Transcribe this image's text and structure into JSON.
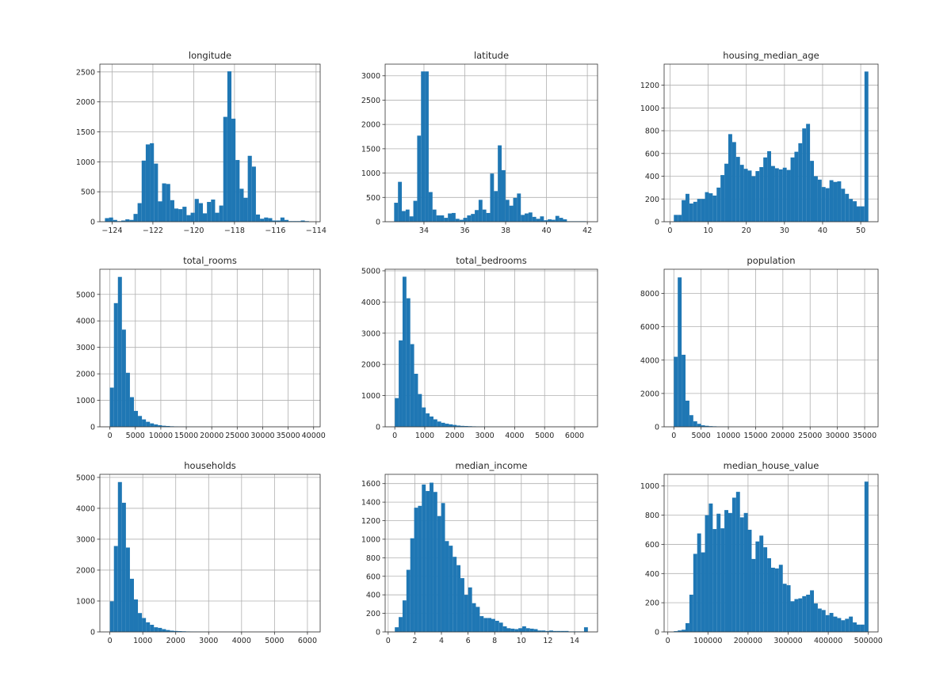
{
  "figure": {
    "bar_color": "#1f77b4",
    "grid_color": "#b0b0b0"
  },
  "chart_data": [
    {
      "type": "bar",
      "title": "longitude",
      "xlabel": "",
      "ylabel": "",
      "xlim": [
        -124.6,
        -113.8
      ],
      "ylim": [
        0,
        2630
      ],
      "grid": true,
      "xticks": [
        -124,
        -122,
        -120,
        -118,
        -116,
        -114
      ],
      "xtick_labels": [
        "−124",
        "−122",
        "−120",
        "−118",
        "−116",
        "−114"
      ],
      "yticks": [
        0,
        500,
        1000,
        1500,
        2000,
        2500
      ],
      "bin_start": -124.35,
      "bin_width": 0.2,
      "values": [
        60,
        70,
        30,
        10,
        20,
        40,
        30,
        130,
        310,
        1020,
        1290,
        1310,
        970,
        340,
        640,
        630,
        360,
        220,
        210,
        250,
        110,
        150,
        380,
        310,
        140,
        330,
        370,
        150,
        270,
        1750,
        2510,
        1720,
        1030,
        550,
        400,
        1100,
        920,
        120,
        50,
        70,
        60,
        20,
        20,
        70,
        30,
        10,
        10,
        10,
        20,
        10
      ]
    },
    {
      "type": "bar",
      "title": "latitude",
      "xlabel": "",
      "ylabel": "",
      "xlim": [
        32.1,
        42.5
      ],
      "ylim": [
        0,
        3240
      ],
      "grid": true,
      "xticks": [
        34,
        36,
        38,
        40,
        42
      ],
      "xtick_labels": [
        "34",
        "36",
        "38",
        "40",
        "42"
      ],
      "yticks": [
        0,
        500,
        1000,
        1500,
        2000,
        2500,
        3000
      ],
      "bin_start": 32.54,
      "bin_width": 0.188,
      "values": [
        390,
        820,
        220,
        250,
        110,
        430,
        1770,
        3090,
        3090,
        610,
        250,
        130,
        130,
        80,
        170,
        180,
        60,
        40,
        80,
        130,
        160,
        240,
        450,
        250,
        180,
        990,
        630,
        1570,
        1060,
        450,
        330,
        490,
        580,
        140,
        170,
        190,
        100,
        60,
        110,
        30,
        50,
        40,
        120,
        80,
        50,
        10,
        10,
        10,
        10,
        10
      ]
    },
    {
      "type": "bar",
      "title": "housing_median_age",
      "xlabel": "",
      "ylabel": "",
      "xlim": [
        -1.55,
        54.55
      ],
      "ylim": [
        0,
        1385
      ],
      "grid": true,
      "xticks": [
        0,
        10,
        20,
        30,
        40,
        50
      ],
      "xtick_labels": [
        "0",
        "10",
        "20",
        "30",
        "40",
        "50"
      ],
      "yticks": [
        0,
        200,
        400,
        600,
        800,
        1000,
        1200
      ],
      "bin_start": 1,
      "bin_width": 1.02,
      "values": [
        60,
        60,
        190,
        245,
        160,
        175,
        200,
        200,
        260,
        250,
        230,
        300,
        410,
        510,
        770,
        700,
        570,
        500,
        465,
        450,
        400,
        445,
        480,
        565,
        620,
        490,
        470,
        460,
        475,
        455,
        565,
        615,
        690,
        820,
        860,
        535,
        400,
        370,
        305,
        295,
        365,
        350,
        355,
        290,
        245,
        200,
        180,
        135,
        135,
        1320
      ]
    },
    {
      "type": "bar",
      "title": "total_rooms",
      "xlabel": "",
      "ylabel": "",
      "xlim": [
        -1967,
        41287
      ],
      "ylim": [
        0,
        5950
      ],
      "grid": true,
      "xticks": [
        0,
        5000,
        10000,
        15000,
        20000,
        25000,
        30000,
        35000,
        40000
      ],
      "xtick_labels": [
        "0",
        "5000",
        "10000",
        "15000",
        "20000",
        "25000",
        "30000",
        "35000",
        "40000"
      ],
      "yticks": [
        0,
        1000,
        2000,
        3000,
        4000,
        5000
      ],
      "bin_start": 2,
      "bin_width": 786.4,
      "values": [
        1480,
        4670,
        5660,
        3670,
        2040,
        1120,
        600,
        410,
        280,
        190,
        130,
        90,
        60,
        40,
        30,
        20,
        15,
        10,
        10,
        8,
        7,
        6,
        5,
        5,
        4,
        4,
        3,
        3,
        2,
        2,
        2,
        2,
        2,
        2,
        1,
        1,
        1,
        1,
        1,
        1,
        1,
        1,
        1,
        1,
        1,
        1,
        1,
        1,
        1,
        2
      ]
    },
    {
      "type": "bar",
      "title": "total_bedrooms",
      "xlabel": "",
      "ylabel": "",
      "xlim": [
        -322,
        6767
      ],
      "ylim": [
        0,
        5050
      ],
      "grid": true,
      "xticks": [
        0,
        1000,
        2000,
        3000,
        4000,
        5000,
        6000
      ],
      "xtick_labels": [
        "0",
        "1000",
        "2000",
        "3000",
        "4000",
        "5000",
        "6000"
      ],
      "yticks": [
        0,
        1000,
        2000,
        3000,
        4000,
        5000
      ],
      "bin_start": 1,
      "bin_width": 128.9,
      "values": [
        920,
        2770,
        4810,
        4120,
        2650,
        1700,
        1050,
        620,
        430,
        330,
        240,
        170,
        130,
        100,
        80,
        60,
        40,
        30,
        25,
        20,
        15,
        12,
        10,
        8,
        6,
        5,
        4,
        4,
        3,
        3,
        2,
        2,
        2,
        2,
        1,
        1,
        1,
        1,
        1,
        1,
        1,
        1,
        1,
        1,
        1,
        1,
        1,
        1,
        1,
        2
      ]
    },
    {
      "type": "bar",
      "title": "population",
      "xlabel": "",
      "ylabel": "",
      "xlim": [
        -1782,
        37466
      ],
      "ylim": [
        0,
        9450
      ],
      "grid": true,
      "xticks": [
        0,
        5000,
        10000,
        15000,
        20000,
        25000,
        30000,
        35000
      ],
      "xtick_labels": [
        "0",
        "5000",
        "10000",
        "15000",
        "20000",
        "25000",
        "30000",
        "35000"
      ],
      "yticks": [
        0,
        2000,
        4000,
        6000,
        8000
      ],
      "bin_start": 3,
      "bin_width": 713.6,
      "values": [
        4200,
        8960,
        4320,
        1570,
        700,
        330,
        180,
        90,
        60,
        40,
        30,
        20,
        15,
        12,
        10,
        8,
        6,
        5,
        4,
        4,
        3,
        3,
        3,
        2,
        2,
        2,
        1,
        1,
        1,
        1,
        1,
        1,
        1,
        1,
        1,
        1,
        1,
        1,
        1,
        1,
        1,
        1,
        1,
        1,
        1,
        1,
        1,
        1,
        1,
        2
      ]
    },
    {
      "type": "bar",
      "title": "households",
      "xlabel": "",
      "ylabel": "",
      "xlim": [
        -304,
        6387
      ],
      "ylim": [
        0,
        5100
      ],
      "grid": true,
      "xticks": [
        0,
        1000,
        2000,
        3000,
        4000,
        5000,
        6000
      ],
      "xtick_labels": [
        "0",
        "1000",
        "2000",
        "3000",
        "4000",
        "5000",
        "6000"
      ],
      "yticks": [
        0,
        1000,
        2000,
        3000,
        4000,
        5000
      ],
      "bin_start": 1,
      "bin_width": 121.6,
      "values": [
        990,
        2780,
        4850,
        4180,
        2730,
        1720,
        1050,
        610,
        450,
        310,
        230,
        150,
        130,
        90,
        60,
        40,
        30,
        25,
        20,
        15,
        12,
        10,
        8,
        6,
        5,
        4,
        4,
        3,
        3,
        2,
        2,
        2,
        2,
        2,
        1,
        1,
        1,
        1,
        1,
        1,
        1,
        1,
        1,
        1,
        1,
        1,
        1,
        1,
        1,
        2
      ]
    },
    {
      "type": "bar",
      "title": "median_income",
      "xlabel": "",
      "ylabel": "",
      "xlim": [
        -0.226,
        15.725
      ],
      "ylim": [
        0,
        1700
      ],
      "grid": true,
      "xticks": [
        0,
        2,
        4,
        6,
        8,
        10,
        12,
        14
      ],
      "xtick_labels": [
        "0",
        "2",
        "4",
        "6",
        "8",
        "10",
        "12",
        "14"
      ],
      "yticks": [
        0,
        200,
        400,
        600,
        800,
        1000,
        1200,
        1400,
        1600
      ],
      "bin_start": 0.4999,
      "bin_width": 0.29,
      "values": [
        50,
        160,
        340,
        670,
        1010,
        1340,
        1360,
        1590,
        1520,
        1610,
        1510,
        1250,
        1390,
        980,
        930,
        810,
        720,
        580,
        400,
        480,
        310,
        270,
        170,
        150,
        150,
        140,
        120,
        100,
        60,
        40,
        35,
        30,
        40,
        60,
        40,
        35,
        30,
        15,
        15,
        10,
        15,
        10,
        10,
        10,
        10,
        5,
        5,
        5,
        5,
        50
      ]
    },
    {
      "type": "bar",
      "title": "median_house_value",
      "xlabel": "",
      "ylabel": "",
      "xlim": [
        -9255,
        524255
      ],
      "ylim": [
        0,
        1080
      ],
      "grid": true,
      "xticks": [
        0,
        100000,
        200000,
        300000,
        400000,
        500000
      ],
      "xtick_labels": [
        "0",
        "100000",
        "200000",
        "300000",
        "400000",
        "500000"
      ],
      "yticks": [
        0,
        200,
        400,
        600,
        800,
        1000
      ],
      "bin_start": 14999,
      "bin_width": 9700,
      "values": [
        5,
        10,
        15,
        60,
        255,
        535,
        675,
        545,
        800,
        880,
        705,
        810,
        710,
        835,
        815,
        920,
        960,
        785,
        815,
        700,
        500,
        620,
        660,
        580,
        505,
        440,
        435,
        460,
        330,
        320,
        210,
        225,
        230,
        245,
        255,
        285,
        195,
        160,
        150,
        115,
        130,
        105,
        95,
        80,
        90,
        105,
        65,
        50,
        50,
        1030
      ]
    }
  ]
}
